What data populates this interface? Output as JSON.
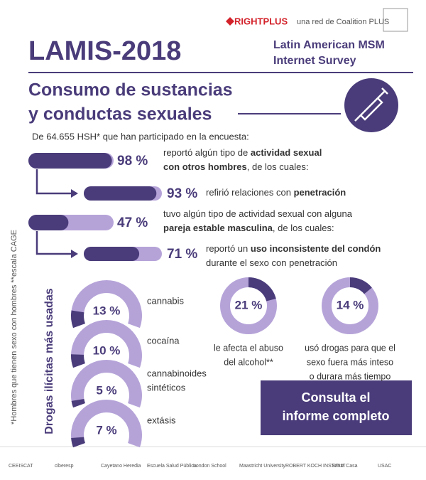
{
  "header": {
    "brand": "RIGHTPLUS",
    "network": "una red de Coalition PLUS",
    "title": "LAMIS-2018",
    "survey": [
      "Latin American MSM",
      "Internet Survey"
    ]
  },
  "section": {
    "title": [
      "Consumo de sustancias",
      "y conductas sexuales"
    ],
    "intro": "De 64.655 HSH* que han participado en la encuesta:"
  },
  "stats": [
    {
      "value": 98,
      "label": "98 %",
      "lines": [
        [
          "reportó algún tipo de ",
          {
            "strong": "actividad sexual"
          }
        ],
        [
          {
            "strong": "con otros hombres"
          },
          ", de los cuales:"
        ]
      ]
    },
    {
      "value": 93,
      "label": "93 %",
      "lines": [
        [
          "refirió relaciones con ",
          {
            "strong": "penetración"
          }
        ]
      ]
    },
    {
      "value": 47,
      "label": "47 %",
      "lines": [
        [
          "tuvo algún tipo de actividad sexual con alguna"
        ],
        [
          {
            "strong": "pareja estable masculina"
          },
          ", de los cuales:"
        ]
      ]
    },
    {
      "value": 71,
      "label": "71 %",
      "lines": [
        [
          "reportó un ",
          {
            "strong": "uso inconsistente del condón"
          }
        ],
        [
          "durante el sexo con penetración"
        ]
      ]
    }
  ],
  "drugs": {
    "title": "Drogas ilícitas más usadas",
    "items": [
      {
        "value": 13,
        "label": "13 %",
        "name": [
          "cannabis"
        ]
      },
      {
        "value": 10,
        "label": "10 %",
        "name": [
          "cocaína"
        ]
      },
      {
        "value": 5,
        "label": "5 %",
        "name": [
          "cannabinoides",
          "sintéticos"
        ]
      },
      {
        "value": 7,
        "label": "7 %",
        "name": [
          "extásis"
        ]
      }
    ]
  },
  "rings": [
    {
      "value": 21,
      "label": "21 %",
      "text": [
        "le afecta el abuso",
        "del alcohol**"
      ]
    },
    {
      "value": 14,
      "label": "14 %",
      "text": [
        "usó drogas para que el",
        "sexo fuera más inteso",
        "o durara más tiempo"
      ]
    }
  ],
  "footnote": "*Hombres que tienen sexo con hombres  **escala CAGE",
  "button": [
    "Consulta el",
    "informe completo"
  ],
  "partners": [
    "CEEISCAT",
    "ciberesp",
    "Cayetano Heredia",
    "Escuela Salud Pública",
    "London School",
    "Maastricht University",
    "ROBERT KOCH INSTITUT",
    "Santa Casa",
    "USAC"
  ]
}
